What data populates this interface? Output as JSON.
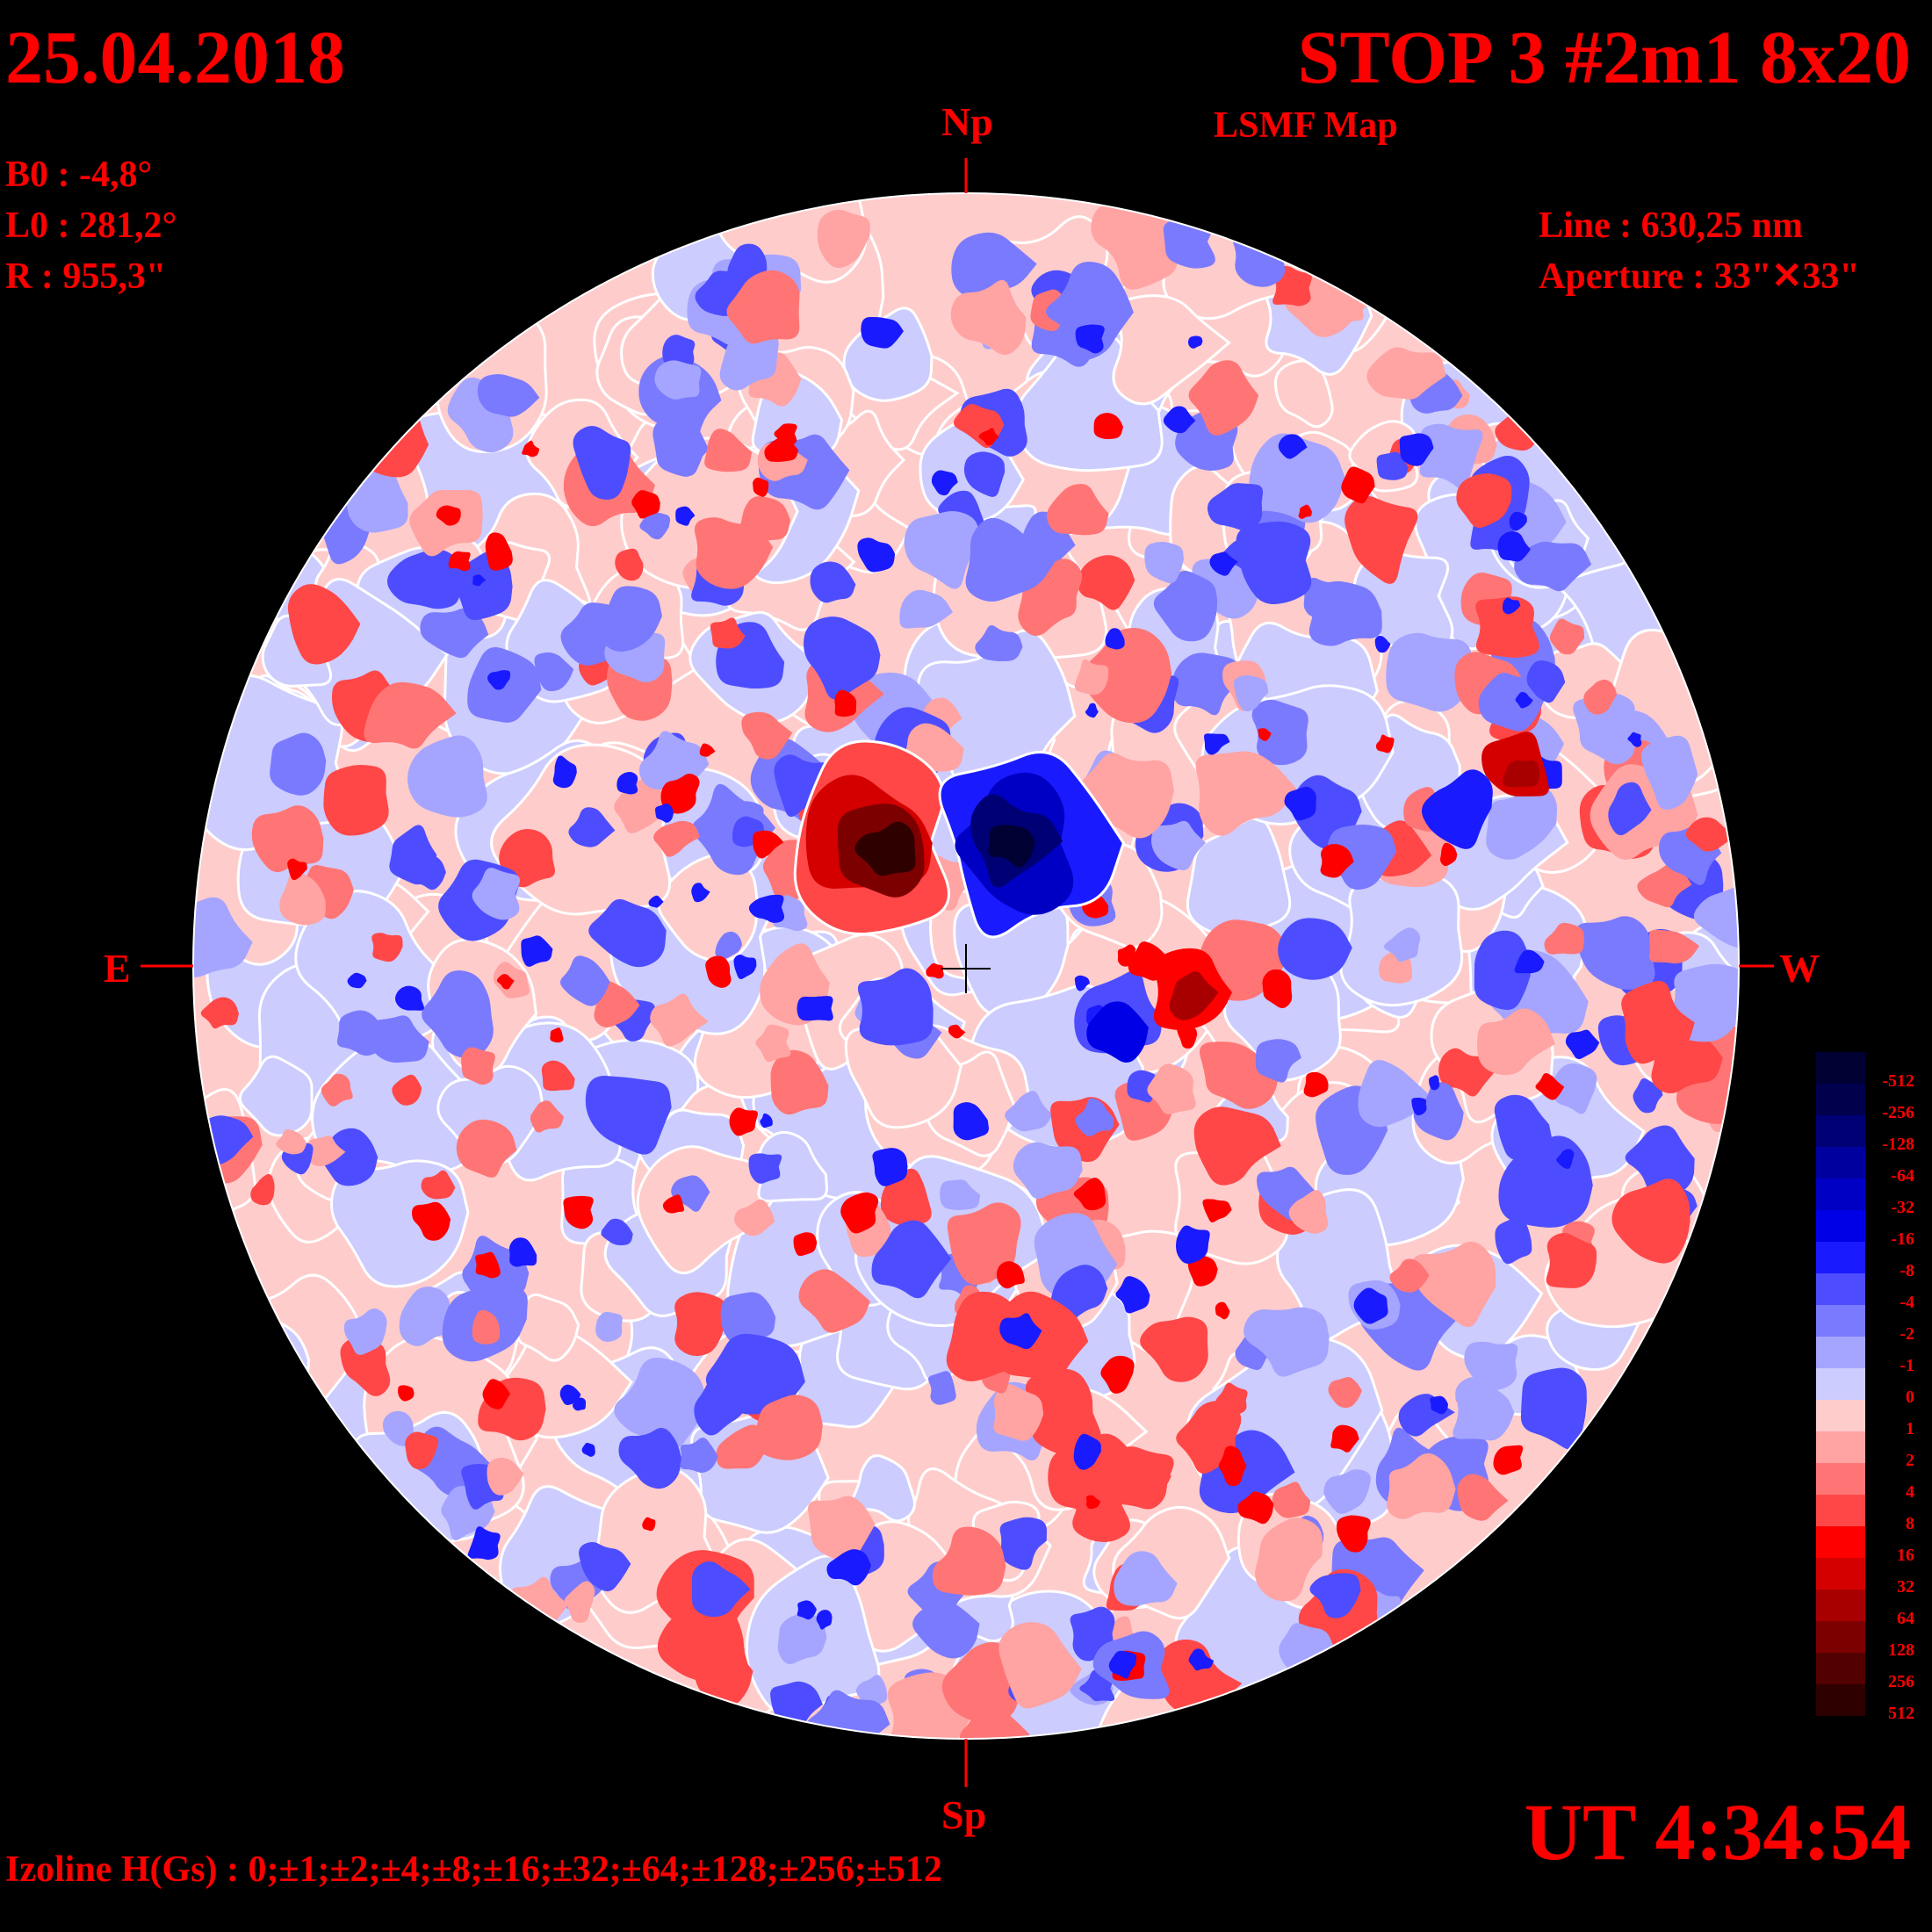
{
  "header": {
    "date": "25.04.2018",
    "title": "STOP 3 #2m1 8x20",
    "subtitle": "LSMF  Map"
  },
  "params": {
    "b0": "B0 : -4,8°",
    "l0": "L0 : 281,2°",
    "r": "R  : 955,3\""
  },
  "instrument": {
    "line": "Line :  630,25 nm",
    "aperture": "Aperture : 33\"✕33\""
  },
  "directions": {
    "north": "Np",
    "south": "Sp",
    "east": "E",
    "west": "W"
  },
  "time": "UT 4:34:54",
  "izoline": "Izoline H(Gs) : 0;±1;±2;±4;±8;±16;±32;±64;±128;±256;±512",
  "legend": {
    "levels": [
      {
        "label": "-512",
        "color": "#000033"
      },
      {
        "label": "-256",
        "color": "#00004d"
      },
      {
        "label": "-128",
        "color": "#000075"
      },
      {
        "label": "-64",
        "color": "#00009e"
      },
      {
        "label": "-32",
        "color": "#0000c4"
      },
      {
        "label": "-16",
        "color": "#0000e6"
      },
      {
        "label": "-8",
        "color": "#1a1aff"
      },
      {
        "label": "-4",
        "color": "#4d4dff"
      },
      {
        "label": "-2",
        "color": "#7a7aff"
      },
      {
        "label": "-1",
        "color": "#a5a5ff"
      },
      {
        "label": "0",
        "color": "#ccccff"
      },
      {
        "label": "1",
        "color": "#ffcccc"
      },
      {
        "label": "2",
        "color": "#ffa3a3"
      },
      {
        "label": "4",
        "color": "#ff7575"
      },
      {
        "label": "8",
        "color": "#ff4747"
      },
      {
        "label": "16",
        "color": "#ff0000"
      },
      {
        "label": "32",
        "color": "#d40000"
      },
      {
        "label": "64",
        "color": "#a80000"
      },
      {
        "label": "128",
        "color": "#7d0000"
      },
      {
        "label": "256",
        "color": "#520000"
      },
      {
        "label": "512",
        "color": "#2e0000"
      }
    ]
  },
  "colors": {
    "text": "#ff0000",
    "background": "#000000",
    "isoline": "#ffffff"
  }
}
